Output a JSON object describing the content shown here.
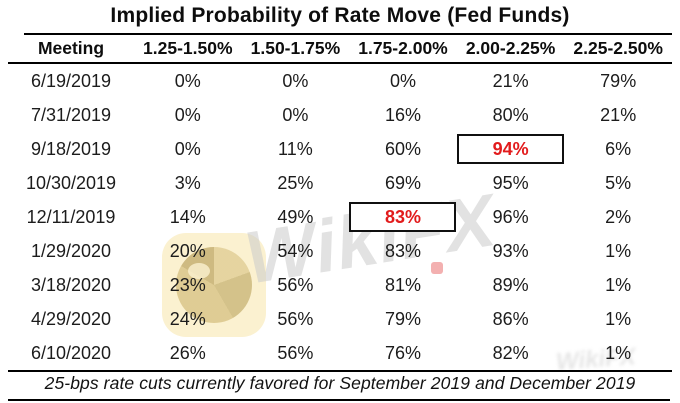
{
  "watermark": {
    "text": "WikiFX"
  },
  "colors": {
    "highlight_red": "#e21b1c",
    "rule_black": "#000000",
    "watermark_gray": "#cbcbcb",
    "watermark_yellow": "#fbf1d0"
  },
  "chart_data": {
    "type": "table",
    "title": "Implied Probability of Rate Move (Fed Funds)",
    "columns": [
      "Meeting",
      "1.25-1.50%",
      "1.50-1.75%",
      "1.75-2.00%",
      "2.00-2.25%",
      "2.25-2.50%"
    ],
    "rows": [
      {
        "meeting": "6/19/2019",
        "values": [
          "0%",
          "0%",
          "0%",
          "21%",
          "79%"
        ]
      },
      {
        "meeting": "7/31/2019",
        "values": [
          "0%",
          "0%",
          "16%",
          "80%",
          "21%"
        ]
      },
      {
        "meeting": "9/18/2019",
        "values": [
          "0%",
          "11%",
          "60%",
          "94%",
          "6%"
        ]
      },
      {
        "meeting": "10/30/2019",
        "values": [
          "3%",
          "25%",
          "69%",
          "95%",
          "5%"
        ]
      },
      {
        "meeting": "12/11/2019",
        "values": [
          "14%",
          "49%",
          "83%",
          "96%",
          "2%"
        ]
      },
      {
        "meeting": "1/29/2020",
        "values": [
          "20%",
          "54%",
          "83%",
          "93%",
          "1%"
        ]
      },
      {
        "meeting": "3/18/2020",
        "values": [
          "23%",
          "56%",
          "81%",
          "89%",
          "1%"
        ]
      },
      {
        "meeting": "4/29/2020",
        "values": [
          "24%",
          "56%",
          "79%",
          "86%",
          "1%"
        ]
      },
      {
        "meeting": "6/10/2020",
        "values": [
          "26%",
          "56%",
          "76%",
          "82%",
          "1%"
        ]
      }
    ],
    "highlighted_cells": [
      {
        "meeting": "9/18/2019",
        "column": "2.00-2.25%",
        "value": "94%",
        "style": "red bold text in black box"
      },
      {
        "meeting": "12/11/2019",
        "column": "1.75-2.00%",
        "value": "83%",
        "style": "red bold text in black box"
      }
    ],
    "footnote": "25-bps rate cuts currently favored for September 2019 and December 2019",
    "layout": {
      "grid": false,
      "vertical_rules": false,
      "horizontal_rules": [
        "below title",
        "below header",
        "above footnote",
        "below footnote"
      ]
    }
  }
}
